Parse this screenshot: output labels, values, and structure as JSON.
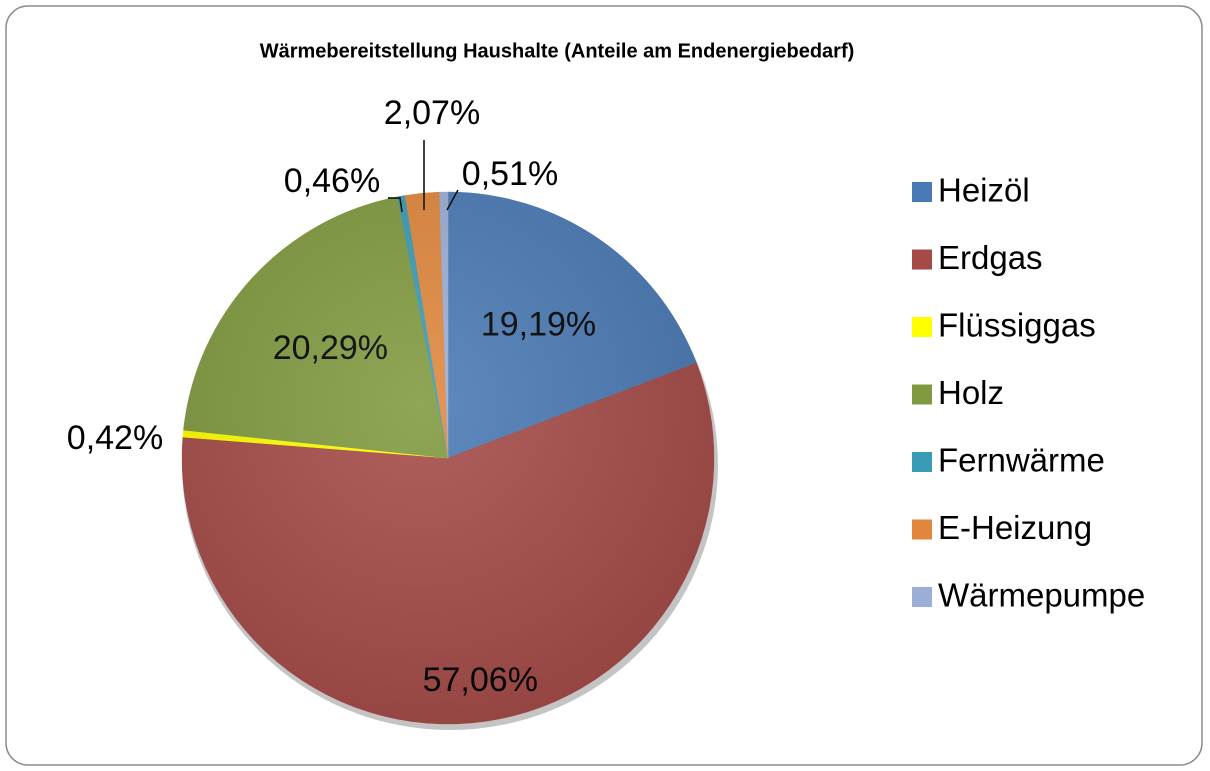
{
  "chart_data": {
    "type": "pie",
    "title": "Wärmebereitstellung Haushalte (Anteile am  Endenergiebedarf)",
    "categories": [
      "Heizöl",
      "Erdgas",
      "Flüssiggas",
      "Holz",
      "Fernwärme",
      "E-Heizung",
      "Wärmepumpe"
    ],
    "values": [
      19.19,
      57.06,
      0.42,
      20.29,
      0.46,
      2.07,
      0.51
    ],
    "value_labels": [
      "19,19%",
      "57,06%",
      "0,42%",
      "20,29%",
      "0,46%",
      "2,07%",
      "0,51%"
    ],
    "colors": [
      "#4a7ab5",
      "#a54a47",
      "#ffff00",
      "#7f9a3f",
      "#3a9bb5",
      "#e0873d",
      "#9aaed6"
    ],
    "legend": "right"
  }
}
